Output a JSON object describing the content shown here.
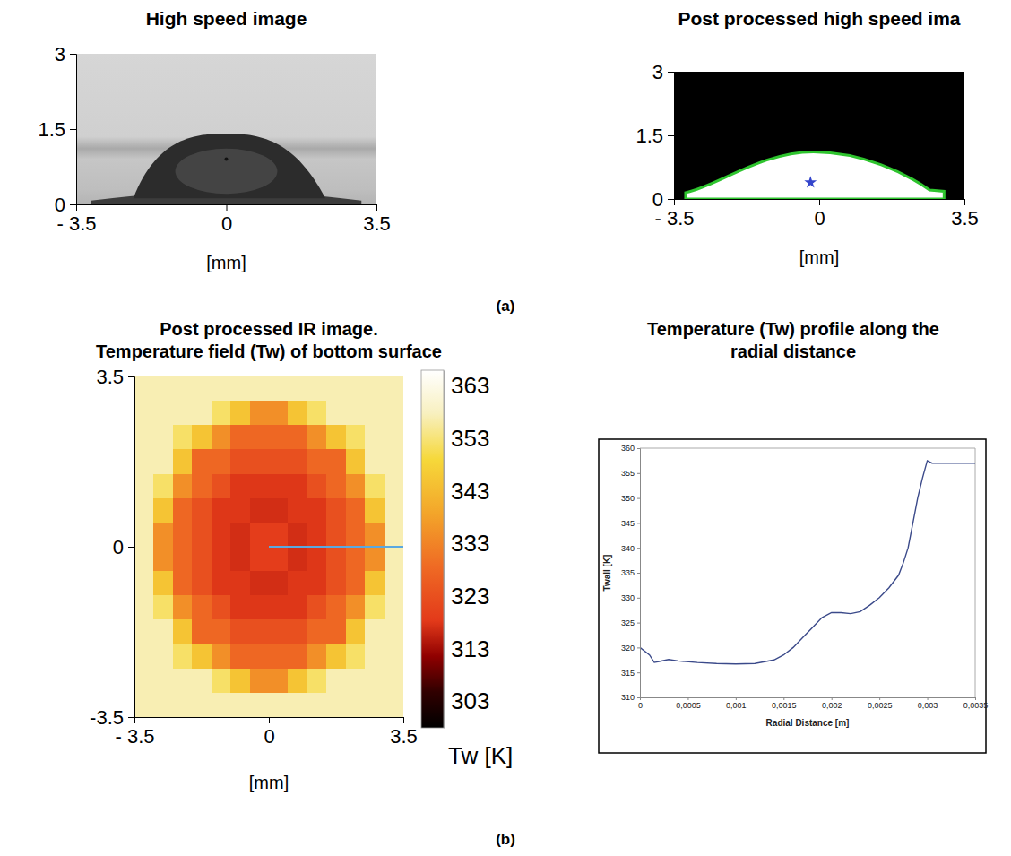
{
  "figure": {
    "panel_labels": [
      "(a)",
      "(b)"
    ]
  },
  "chart_data": [
    {
      "type": "image",
      "title": "High speed image",
      "x_label": "[mm]",
      "xlim": [
        -3.5,
        3.5
      ],
      "xticks": [
        {
          "value": -3.5,
          "label": "- 3.5"
        },
        0,
        3.5
      ],
      "ylim": [
        0,
        3
      ],
      "yticks": [
        0,
        1.5,
        3
      ]
    },
    {
      "type": "image",
      "title": "Post processed high speed ima",
      "x_label": "[mm]",
      "xlim": [
        -3.5,
        3.5
      ],
      "xticks": [
        {
          "value": -3.5,
          "label": "- 3.5"
        },
        0,
        3.5
      ],
      "ylim": [
        0,
        3
      ],
      "yticks": [
        0,
        1.5,
        3
      ]
    },
    {
      "type": "heatmap",
      "title": "Post processed IR image. Temperature field (Tw) of bottom surface",
      "x_label": "[mm]",
      "xlim": [
        -3.5,
        3.5
      ],
      "xticks": [
        {
          "value": -3.5,
          "label": "- 3.5"
        },
        0,
        3.5
      ],
      "ylim": [
        -3.5,
        3.5
      ],
      "yticks": [
        -3.5,
        0,
        3.5
      ],
      "x": [
        -3.25,
        -2.75,
        -2.25,
        -1.75,
        -1.25,
        -0.75,
        -0.25,
        0.25,
        0.75,
        1.25,
        1.75,
        2.25,
        2.75,
        3.25
      ],
      "y": [
        3.25,
        2.75,
        2.25,
        1.75,
        1.25,
        0.75,
        0.25,
        -0.25,
        -0.75,
        -1.25,
        -1.75,
        -2.25,
        -2.75,
        -3.25
      ],
      "cells": [
        [
          357,
          357,
          357,
          357,
          357,
          357,
          357,
          357,
          357,
          357,
          357,
          357,
          357,
          357
        ],
        [
          357,
          357,
          357,
          357,
          352,
          345,
          335,
          335,
          345,
          352,
          357,
          357,
          357,
          357
        ],
        [
          357,
          357,
          352,
          345,
          335,
          328,
          328,
          328,
          328,
          335,
          345,
          352,
          357,
          357
        ],
        [
          357,
          357,
          345,
          328,
          328,
          323,
          323,
          323,
          323,
          328,
          328,
          345,
          357,
          357
        ],
        [
          357,
          352,
          335,
          328,
          323,
          318,
          318,
          318,
          318,
          323,
          328,
          335,
          352,
          357
        ],
        [
          357,
          345,
          328,
          323,
          318,
          318,
          317,
          317,
          318,
          318,
          323,
          328,
          345,
          357
        ],
        [
          357,
          335,
          328,
          323,
          318,
          317,
          319,
          319,
          317,
          318,
          323,
          328,
          335,
          357
        ],
        [
          357,
          335,
          328,
          323,
          318,
          317,
          319,
          319,
          317,
          318,
          323,
          328,
          335,
          357
        ],
        [
          357,
          345,
          328,
          323,
          318,
          318,
          317,
          317,
          318,
          318,
          323,
          328,
          345,
          357
        ],
        [
          357,
          352,
          335,
          328,
          323,
          318,
          318,
          318,
          318,
          323,
          328,
          335,
          352,
          357
        ],
        [
          357,
          357,
          345,
          328,
          328,
          323,
          323,
          323,
          323,
          328,
          328,
          345,
          357,
          357
        ],
        [
          357,
          357,
          352,
          345,
          335,
          328,
          328,
          328,
          328,
          335,
          345,
          352,
          357,
          357
        ],
        [
          357,
          357,
          357,
          357,
          352,
          345,
          335,
          335,
          345,
          352,
          357,
          357,
          357,
          357
        ],
        [
          357,
          357,
          357,
          357,
          357,
          357,
          357,
          357,
          357,
          357,
          357,
          357,
          357,
          357
        ]
      ],
      "colorbar_range": [
        298,
        366
      ],
      "colorbar_ticks": [
        303,
        313,
        323,
        333,
        343,
        353,
        363
      ],
      "colorbar_label": "Tw [K]"
    },
    {
      "type": "line",
      "title": "Temperature (Tw) profile along the radial distance",
      "x_label": "Radial Distance [m]",
      "y_label": "Twall [K]",
      "color": "#3b4a8a",
      "xlim": [
        0,
        0.0035
      ],
      "xticks": [
        0,
        {
          "value": 0.0005,
          "label": "0,0005"
        },
        {
          "value": 0.001,
          "label": "0,001"
        },
        {
          "value": 0.0015,
          "label": "0,0015"
        },
        {
          "value": 0.002,
          "label": "0,002"
        },
        {
          "value": 0.0025,
          "label": "0,0025"
        },
        {
          "value": 0.003,
          "label": "0,003"
        },
        {
          "value": 0.0035,
          "label": "0,0035"
        }
      ],
      "ylim": [
        310,
        360
      ],
      "yticks": [
        310,
        315,
        320,
        325,
        330,
        335,
        340,
        345,
        350,
        355,
        360
      ],
      "x": [
        0,
        0.0001,
        0.00015,
        0.0002,
        0.0003,
        0.0004,
        0.0006,
        0.0008,
        0.001,
        0.0012,
        0.0014,
        0.0015,
        0.0016,
        0.0017,
        0.0018,
        0.0019,
        0.002,
        0.0021,
        0.0022,
        0.0023,
        0.0024,
        0.0025,
        0.0026,
        0.0027,
        0.00275,
        0.0028,
        0.00285,
        0.0029,
        0.00295,
        0.003,
        0.00305,
        0.0031,
        0.0035
      ],
      "values": [
        320,
        318.5,
        317,
        317.2,
        317.6,
        317.3,
        317,
        316.8,
        316.7,
        316.8,
        317.5,
        318.5,
        320,
        322,
        324,
        326,
        327,
        327,
        326.8,
        327.2,
        328.5,
        330,
        332,
        334.5,
        337,
        340,
        345,
        350,
        354,
        357.5,
        357,
        357,
        357
      ]
    }
  ]
}
